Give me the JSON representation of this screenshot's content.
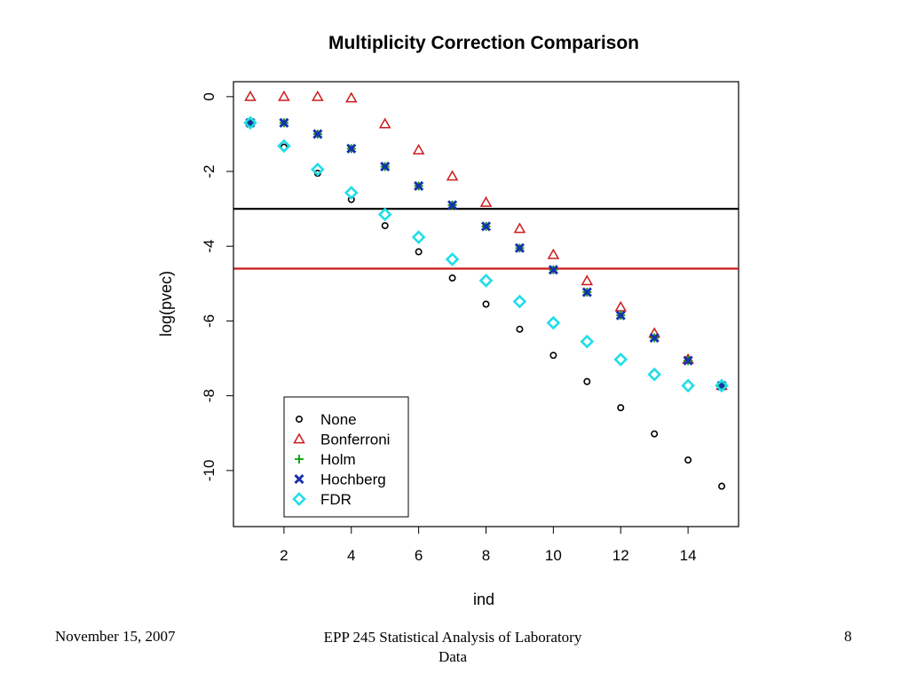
{
  "slide": {
    "footer_date": "November 15, 2007",
    "footer_course": "EPP 245 Statistical Analysis of Laboratory Data",
    "page_number": "8"
  },
  "chart_data": {
    "type": "scatter",
    "title": "Multiplicity Correction Comparison",
    "xlabel": "ind",
    "ylabel": "log(pvec)",
    "xlim": [
      0.5,
      15.5
    ],
    "ylim": [
      -11.5,
      0.4
    ],
    "xticks": [
      2,
      4,
      6,
      8,
      10,
      12,
      14
    ],
    "yticks": [
      0,
      -2,
      -4,
      -6,
      -8,
      -10
    ],
    "grid": false,
    "legend_position": "bottom-left",
    "x": [
      1,
      2,
      3,
      4,
      5,
      6,
      7,
      8,
      9,
      10,
      11,
      12,
      13,
      14,
      15
    ],
    "series": [
      {
        "name": "None",
        "marker": "circle",
        "color": "#000000",
        "values": [
          -0.7,
          -1.35,
          -2.05,
          -2.75,
          -3.45,
          -4.15,
          -4.85,
          -5.55,
          -6.22,
          -6.92,
          -7.62,
          -8.32,
          -9.02,
          -9.72,
          -10.42
        ]
      },
      {
        "name": "Bonferroni",
        "marker": "triangle",
        "color": "#cc1a1a",
        "values": [
          0,
          0,
          0,
          -0.04,
          -0.73,
          -1.43,
          -2.13,
          -2.83,
          -3.53,
          -4.23,
          -4.93,
          -5.63,
          -6.33,
          -7.03,
          -7.73
        ]
      },
      {
        "name": "Holm",
        "marker": "plus",
        "color": "#00a000",
        "values": [
          -0.7,
          -0.7,
          -1.0,
          -1.39,
          -1.87,
          -2.39,
          -2.9,
          -3.47,
          -4.05,
          -4.63,
          -5.23,
          -5.85,
          -6.45,
          -7.06,
          -7.73
        ]
      },
      {
        "name": "Hochberg",
        "marker": "cross",
        "color": "#1a2fb0",
        "values": [
          -0.7,
          -0.7,
          -1.0,
          -1.39,
          -1.87,
          -2.39,
          -2.9,
          -3.47,
          -4.05,
          -4.63,
          -5.23,
          -5.85,
          -6.45,
          -7.06,
          -7.73
        ]
      },
      {
        "name": "FDR",
        "marker": "diamond",
        "color": "#22dde8",
        "values": [
          -0.7,
          -1.32,
          -1.95,
          -2.57,
          -3.15,
          -3.76,
          -4.35,
          -4.92,
          -5.48,
          -6.05,
          -6.55,
          -7.03,
          -7.43,
          -7.73,
          -7.73
        ]
      }
    ],
    "hlines": [
      {
        "y": -3.0,
        "color": "#000000"
      },
      {
        "y": -4.6,
        "color": "#cc1a1a"
      }
    ]
  }
}
